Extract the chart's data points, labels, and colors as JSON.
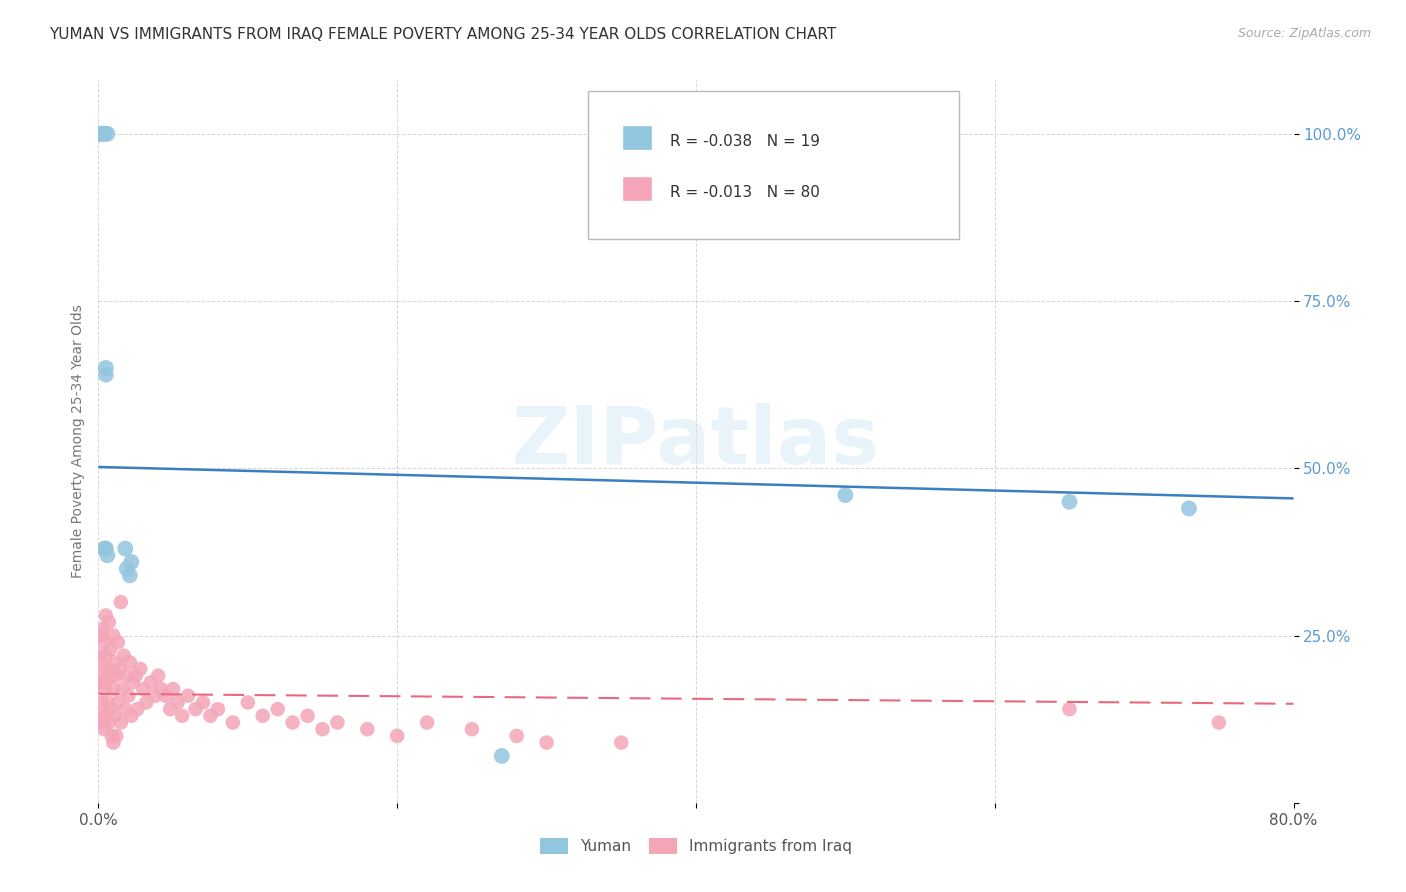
{
  "title": "YUMAN VS IMMIGRANTS FROM IRAQ FEMALE POVERTY AMONG 25-34 YEAR OLDS CORRELATION CHART",
  "source": "Source: ZipAtlas.com",
  "ylabel": "Female Poverty Among 25-34 Year Olds",
  "xlim": [
    0.0,
    0.8
  ],
  "ylim": [
    0.0,
    1.08
  ],
  "xticks": [
    0.0,
    0.2,
    0.4,
    0.6,
    0.8
  ],
  "xticklabels": [
    "0.0%",
    "",
    "",
    "",
    "80.0%"
  ],
  "yticks": [
    0.0,
    0.25,
    0.5,
    0.75,
    1.0
  ],
  "yticklabels": [
    "",
    "25.0%",
    "50.0%",
    "75.0%",
    "100.0%"
  ],
  "legend_blue_R": "-0.038",
  "legend_blue_N": "19",
  "legend_pink_R": "-0.013",
  "legend_pink_N": "80",
  "yuman_color": "#92C5DE",
  "iraq_color": "#F4A6B8",
  "blue_trend_color": "#3A7FC1",
  "pink_trend_color": "#E8697D",
  "blue_trend_y0": 0.502,
  "blue_trend_y1": 0.455,
  "pink_trend_y0": 0.163,
  "pink_trend_y1": 0.148,
  "yuman_x": [
    0.001,
    0.002,
    0.004,
    0.006,
    0.001,
    0.003,
    0.005,
    0.004,
    0.018,
    0.022,
    0.019,
    0.021,
    0.005,
    0.006,
    0.5,
    0.65,
    0.73,
    0.27,
    0.005
  ],
  "yuman_y": [
    1.0,
    1.0,
    1.0,
    1.0,
    1.0,
    1.0,
    0.64,
    0.38,
    0.38,
    0.36,
    0.35,
    0.34,
    0.38,
    0.37,
    0.46,
    0.45,
    0.44,
    0.07,
    0.65
  ],
  "iraq_x": [
    0.001,
    0.001,
    0.001,
    0.002,
    0.002,
    0.002,
    0.003,
    0.003,
    0.003,
    0.004,
    0.004,
    0.004,
    0.005,
    0.005,
    0.005,
    0.005,
    0.006,
    0.006,
    0.007,
    0.007,
    0.008,
    0.008,
    0.009,
    0.009,
    0.01,
    0.01,
    0.01,
    0.011,
    0.011,
    0.012,
    0.012,
    0.013,
    0.013,
    0.014,
    0.015,
    0.015,
    0.016,
    0.017,
    0.018,
    0.019,
    0.02,
    0.021,
    0.022,
    0.023,
    0.025,
    0.026,
    0.028,
    0.03,
    0.032,
    0.035,
    0.038,
    0.04,
    0.042,
    0.045,
    0.048,
    0.05,
    0.053,
    0.056,
    0.06,
    0.065,
    0.07,
    0.075,
    0.08,
    0.09,
    0.1,
    0.11,
    0.12,
    0.13,
    0.14,
    0.15,
    0.16,
    0.18,
    0.2,
    0.22,
    0.25,
    0.28,
    0.3,
    0.35,
    0.65,
    0.75
  ],
  "iraq_y": [
    0.22,
    0.18,
    0.13,
    0.25,
    0.2,
    0.15,
    0.26,
    0.18,
    0.12,
    0.24,
    0.17,
    0.11,
    0.28,
    0.22,
    0.18,
    0.13,
    0.2,
    0.15,
    0.27,
    0.12,
    0.23,
    0.14,
    0.19,
    0.1,
    0.25,
    0.17,
    0.09,
    0.21,
    0.13,
    0.19,
    0.1,
    0.24,
    0.15,
    0.2,
    0.3,
    0.12,
    0.17,
    0.22,
    0.14,
    0.19,
    0.16,
    0.21,
    0.13,
    0.18,
    0.19,
    0.14,
    0.2,
    0.17,
    0.15,
    0.18,
    0.16,
    0.19,
    0.17,
    0.16,
    0.14,
    0.17,
    0.15,
    0.13,
    0.16,
    0.14,
    0.15,
    0.13,
    0.14,
    0.12,
    0.15,
    0.13,
    0.14,
    0.12,
    0.13,
    0.11,
    0.12,
    0.11,
    0.1,
    0.12,
    0.11,
    0.1,
    0.09,
    0.09,
    0.14,
    0.12
  ]
}
